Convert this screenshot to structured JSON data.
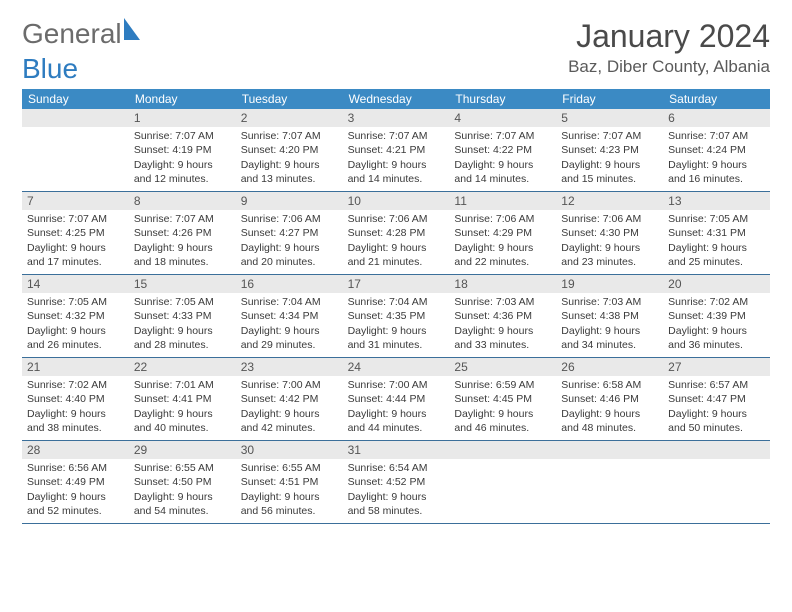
{
  "brand": {
    "part1": "General",
    "part2": "Blue"
  },
  "title": "January 2024",
  "subtitle": "Baz, Diber County, Albania",
  "colors": {
    "header_bg": "#3b8ac4",
    "header_text": "#ffffff",
    "daynum_bg": "#e9e9e9",
    "rule": "#3b6f9a",
    "brand_gray": "#6b6b6b",
    "brand_blue": "#2e7cc0"
  },
  "weekdays": [
    "Sunday",
    "Monday",
    "Tuesday",
    "Wednesday",
    "Thursday",
    "Friday",
    "Saturday"
  ],
  "weeks": [
    [
      null,
      {
        "n": "1",
        "sunrise": "Sunrise: 7:07 AM",
        "sunset": "Sunset: 4:19 PM",
        "d1": "Daylight: 9 hours",
        "d2": "and 12 minutes."
      },
      {
        "n": "2",
        "sunrise": "Sunrise: 7:07 AM",
        "sunset": "Sunset: 4:20 PM",
        "d1": "Daylight: 9 hours",
        "d2": "and 13 minutes."
      },
      {
        "n": "3",
        "sunrise": "Sunrise: 7:07 AM",
        "sunset": "Sunset: 4:21 PM",
        "d1": "Daylight: 9 hours",
        "d2": "and 14 minutes."
      },
      {
        "n": "4",
        "sunrise": "Sunrise: 7:07 AM",
        "sunset": "Sunset: 4:22 PM",
        "d1": "Daylight: 9 hours",
        "d2": "and 14 minutes."
      },
      {
        "n": "5",
        "sunrise": "Sunrise: 7:07 AM",
        "sunset": "Sunset: 4:23 PM",
        "d1": "Daylight: 9 hours",
        "d2": "and 15 minutes."
      },
      {
        "n": "6",
        "sunrise": "Sunrise: 7:07 AM",
        "sunset": "Sunset: 4:24 PM",
        "d1": "Daylight: 9 hours",
        "d2": "and 16 minutes."
      }
    ],
    [
      {
        "n": "7",
        "sunrise": "Sunrise: 7:07 AM",
        "sunset": "Sunset: 4:25 PM",
        "d1": "Daylight: 9 hours",
        "d2": "and 17 minutes."
      },
      {
        "n": "8",
        "sunrise": "Sunrise: 7:07 AM",
        "sunset": "Sunset: 4:26 PM",
        "d1": "Daylight: 9 hours",
        "d2": "and 18 minutes."
      },
      {
        "n": "9",
        "sunrise": "Sunrise: 7:06 AM",
        "sunset": "Sunset: 4:27 PM",
        "d1": "Daylight: 9 hours",
        "d2": "and 20 minutes."
      },
      {
        "n": "10",
        "sunrise": "Sunrise: 7:06 AM",
        "sunset": "Sunset: 4:28 PM",
        "d1": "Daylight: 9 hours",
        "d2": "and 21 minutes."
      },
      {
        "n": "11",
        "sunrise": "Sunrise: 7:06 AM",
        "sunset": "Sunset: 4:29 PM",
        "d1": "Daylight: 9 hours",
        "d2": "and 22 minutes."
      },
      {
        "n": "12",
        "sunrise": "Sunrise: 7:06 AM",
        "sunset": "Sunset: 4:30 PM",
        "d1": "Daylight: 9 hours",
        "d2": "and 23 minutes."
      },
      {
        "n": "13",
        "sunrise": "Sunrise: 7:05 AM",
        "sunset": "Sunset: 4:31 PM",
        "d1": "Daylight: 9 hours",
        "d2": "and 25 minutes."
      }
    ],
    [
      {
        "n": "14",
        "sunrise": "Sunrise: 7:05 AM",
        "sunset": "Sunset: 4:32 PM",
        "d1": "Daylight: 9 hours",
        "d2": "and 26 minutes."
      },
      {
        "n": "15",
        "sunrise": "Sunrise: 7:05 AM",
        "sunset": "Sunset: 4:33 PM",
        "d1": "Daylight: 9 hours",
        "d2": "and 28 minutes."
      },
      {
        "n": "16",
        "sunrise": "Sunrise: 7:04 AM",
        "sunset": "Sunset: 4:34 PM",
        "d1": "Daylight: 9 hours",
        "d2": "and 29 minutes."
      },
      {
        "n": "17",
        "sunrise": "Sunrise: 7:04 AM",
        "sunset": "Sunset: 4:35 PM",
        "d1": "Daylight: 9 hours",
        "d2": "and 31 minutes."
      },
      {
        "n": "18",
        "sunrise": "Sunrise: 7:03 AM",
        "sunset": "Sunset: 4:36 PM",
        "d1": "Daylight: 9 hours",
        "d2": "and 33 minutes."
      },
      {
        "n": "19",
        "sunrise": "Sunrise: 7:03 AM",
        "sunset": "Sunset: 4:38 PM",
        "d1": "Daylight: 9 hours",
        "d2": "and 34 minutes."
      },
      {
        "n": "20",
        "sunrise": "Sunrise: 7:02 AM",
        "sunset": "Sunset: 4:39 PM",
        "d1": "Daylight: 9 hours",
        "d2": "and 36 minutes."
      }
    ],
    [
      {
        "n": "21",
        "sunrise": "Sunrise: 7:02 AM",
        "sunset": "Sunset: 4:40 PM",
        "d1": "Daylight: 9 hours",
        "d2": "and 38 minutes."
      },
      {
        "n": "22",
        "sunrise": "Sunrise: 7:01 AM",
        "sunset": "Sunset: 4:41 PM",
        "d1": "Daylight: 9 hours",
        "d2": "and 40 minutes."
      },
      {
        "n": "23",
        "sunrise": "Sunrise: 7:00 AM",
        "sunset": "Sunset: 4:42 PM",
        "d1": "Daylight: 9 hours",
        "d2": "and 42 minutes."
      },
      {
        "n": "24",
        "sunrise": "Sunrise: 7:00 AM",
        "sunset": "Sunset: 4:44 PM",
        "d1": "Daylight: 9 hours",
        "d2": "and 44 minutes."
      },
      {
        "n": "25",
        "sunrise": "Sunrise: 6:59 AM",
        "sunset": "Sunset: 4:45 PM",
        "d1": "Daylight: 9 hours",
        "d2": "and 46 minutes."
      },
      {
        "n": "26",
        "sunrise": "Sunrise: 6:58 AM",
        "sunset": "Sunset: 4:46 PM",
        "d1": "Daylight: 9 hours",
        "d2": "and 48 minutes."
      },
      {
        "n": "27",
        "sunrise": "Sunrise: 6:57 AM",
        "sunset": "Sunset: 4:47 PM",
        "d1": "Daylight: 9 hours",
        "d2": "and 50 minutes."
      }
    ],
    [
      {
        "n": "28",
        "sunrise": "Sunrise: 6:56 AM",
        "sunset": "Sunset: 4:49 PM",
        "d1": "Daylight: 9 hours",
        "d2": "and 52 minutes."
      },
      {
        "n": "29",
        "sunrise": "Sunrise: 6:55 AM",
        "sunset": "Sunset: 4:50 PM",
        "d1": "Daylight: 9 hours",
        "d2": "and 54 minutes."
      },
      {
        "n": "30",
        "sunrise": "Sunrise: 6:55 AM",
        "sunset": "Sunset: 4:51 PM",
        "d1": "Daylight: 9 hours",
        "d2": "and 56 minutes."
      },
      {
        "n": "31",
        "sunrise": "Sunrise: 6:54 AM",
        "sunset": "Sunset: 4:52 PM",
        "d1": "Daylight: 9 hours",
        "d2": "and 58 minutes."
      },
      null,
      null,
      null
    ]
  ]
}
